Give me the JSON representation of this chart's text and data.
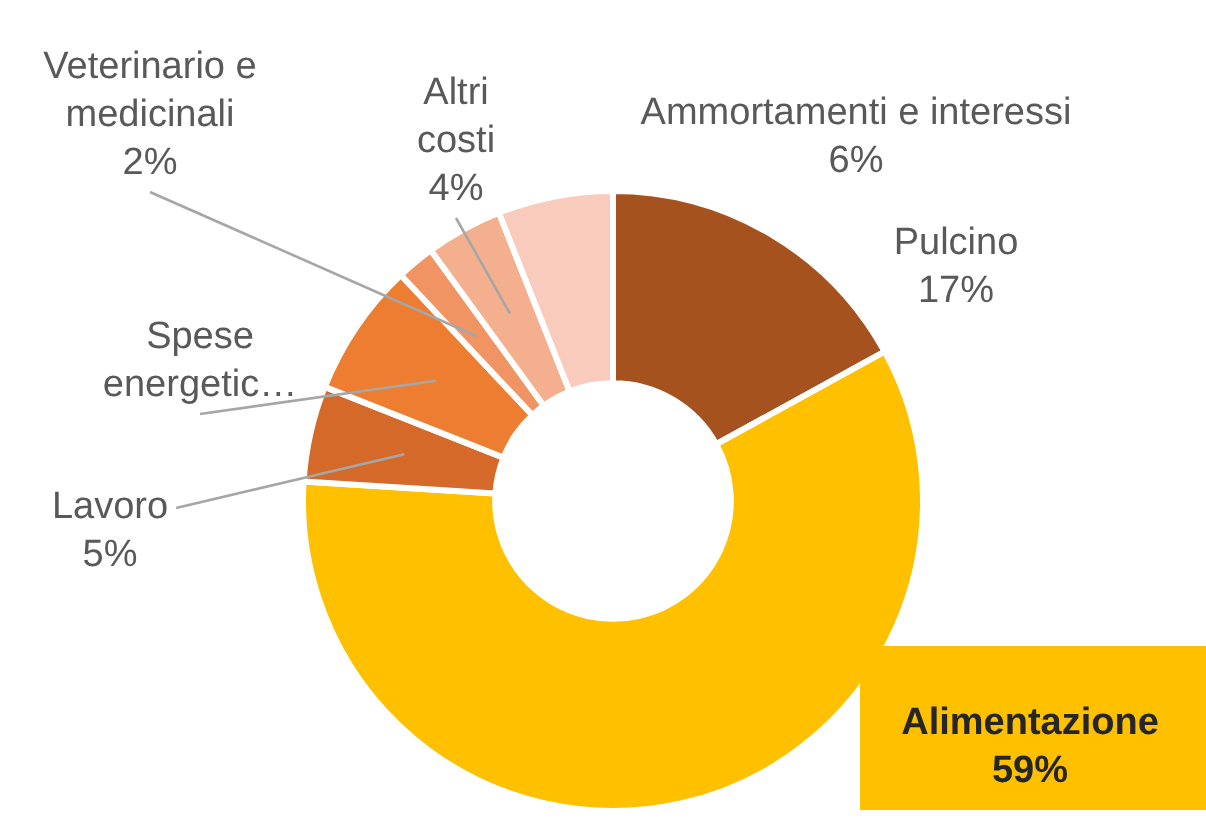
{
  "chart_data": {
    "type": "donut",
    "categories": [
      "Pulcino",
      "Alimentazione",
      "Lavoro",
      "Spese energetic…",
      "Veterinario e medicinali",
      "Altri costi",
      "Ammortamenti e interessi"
    ],
    "values": [
      17,
      59,
      5,
      7,
      2,
      4,
      6
    ],
    "value_labels": [
      "17%",
      "59%",
      "5%",
      null,
      "2%",
      "4%",
      "6%"
    ],
    "colors": [
      "#a5521f",
      "#ffc000",
      "#d4692a",
      "#ed7d31",
      "#f19463",
      "#f4b08e",
      "#f8cbbd"
    ],
    "legend": false
  }
}
